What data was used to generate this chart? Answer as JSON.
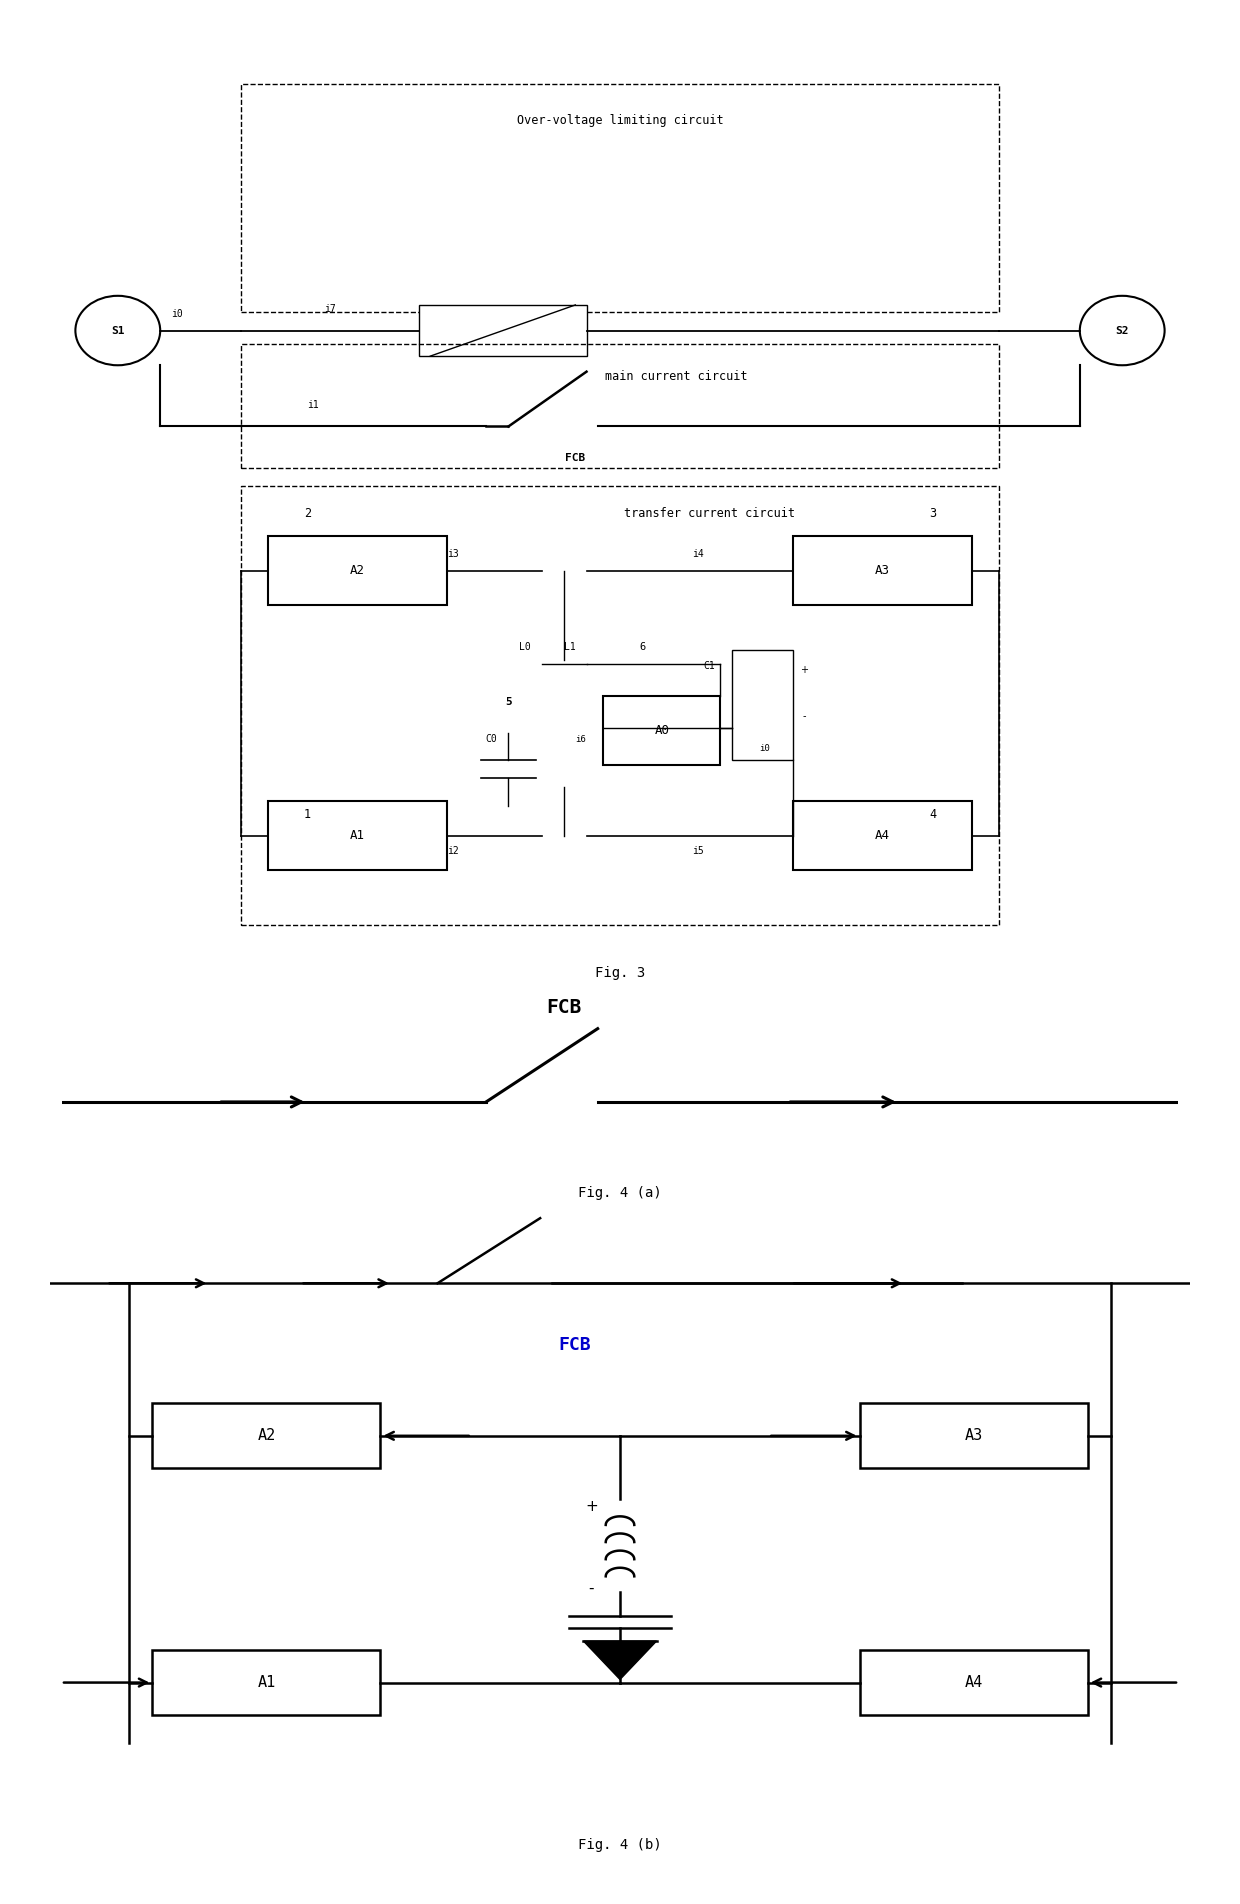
{
  "bg_color": "#ffffff",
  "line_color": "#000000",
  "text_color": "#000000",
  "fig3_label": "Fig. 3",
  "fig4a_label": "Fig. 4 (a)",
  "fig4b_label": "Fig. 4 (b)",
  "overvoltage_label": "Over-voltage limiting circuit",
  "main_label": "main current circuit",
  "transfer_label": "transfer current circuit",
  "fcb_label": "FCB",
  "s1_label": "S1",
  "s2_label": "S2"
}
